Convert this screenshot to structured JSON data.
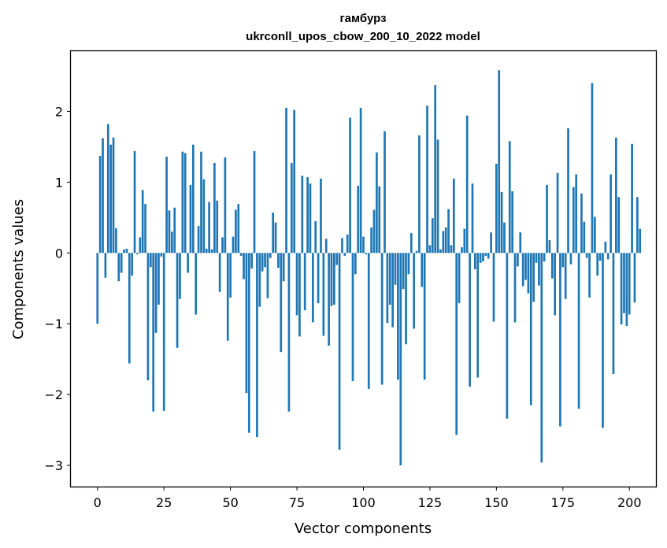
{
  "chart_data": {
    "type": "bar",
    "title": "гамбурз",
    "subtitle": "ukrconll_upos_cbow_200_10_2022 model",
    "xlabel": "Vector components",
    "ylabel": "Components values",
    "xlim": [
      -10,
      210
    ],
    "ylim": [
      -3.3,
      2.85
    ],
    "xticks": [
      0,
      25,
      50,
      75,
      100,
      125,
      150,
      175,
      200
    ],
    "yticks": [
      -3,
      -2,
      -1,
      0,
      1,
      2
    ],
    "grid": false,
    "color": "#1f77b4",
    "x_start": 0,
    "values": [
      -1.0,
      1.37,
      1.62,
      -0.35,
      1.82,
      1.53,
      1.63,
      0.35,
      -0.4,
      -0.28,
      0.05,
      0.06,
      -1.56,
      -0.32,
      1.44,
      -0.02,
      0.22,
      0.89,
      0.69,
      -1.8,
      -0.2,
      -2.24,
      -1.13,
      -0.73,
      -0.05,
      -2.23,
      1.36,
      0.6,
      0.3,
      0.64,
      -1.34,
      -0.65,
      1.43,
      1.41,
      -0.28,
      0.96,
      1.53,
      -0.87,
      0.38,
      1.43,
      1.04,
      0.06,
      0.72,
      0.05,
      1.27,
      0.74,
      -0.55,
      0.22,
      1.35,
      -1.24,
      -0.63,
      0.23,
      0.61,
      0.69,
      -0.04,
      -0.37,
      -1.98,
      -2.54,
      -0.22,
      1.44,
      -2.6,
      -0.76,
      -0.26,
      -0.2,
      -0.64,
      -0.07,
      0.57,
      0.43,
      -0.21,
      -1.4,
      -0.4,
      2.05,
      -2.24,
      1.27,
      2.02,
      -0.88,
      -1.18,
      1.09,
      -0.81,
      1.07,
      0.98,
      -0.98,
      0.45,
      -0.71,
      1.05,
      -1.17,
      0.2,
      -1.31,
      -0.75,
      -0.73,
      -0.17,
      -2.78,
      0.21,
      -0.04,
      0.26,
      1.91,
      -1.81,
      -0.3,
      0.95,
      2.05,
      0.23,
      -0.02,
      -1.92,
      0.36,
      0.61,
      1.42,
      0.94,
      -1.86,
      1.72,
      -0.99,
      -0.73,
      -1.05,
      -0.45,
      -1.79,
      -3.0,
      -0.51,
      -1.29,
      -0.3,
      0.28,
      -1.07,
      0.03,
      1.66,
      -0.48,
      -1.79,
      2.08,
      0.11,
      0.49,
      2.37,
      1.6,
      0.05,
      0.31,
      0.36,
      0.62,
      0.11,
      1.05,
      -2.57,
      -0.71,
      0.08,
      0.34,
      1.94,
      -1.89,
      0.98,
      -0.23,
      -1.76,
      -0.14,
      -0.12,
      -0.04,
      -0.08,
      0.29,
      -0.97,
      1.26,
      2.58,
      0.86,
      0.43,
      -2.34,
      1.58,
      0.87,
      -0.98,
      -0.19,
      0.29,
      -0.47,
      -0.38,
      -0.57,
      -2.15,
      -0.69,
      -0.14,
      -0.46,
      -2.96,
      -0.12,
      0.96,
      0.18,
      -0.36,
      -0.88,
      1.13,
      -2.45,
      -0.2,
      -0.65,
      1.76,
      -0.16,
      0.93,
      1.11,
      -2.2,
      0.84,
      0.44,
      -0.07,
      -0.63,
      2.4,
      0.51,
      -0.32,
      -0.11,
      -2.47,
      0.16,
      -0.09,
      1.11,
      -1.71,
      1.63,
      0.79,
      -1.01,
      -0.85,
      -1.03,
      -0.87,
      1.54,
      -0.7,
      0.79,
      0.34
    ]
  }
}
